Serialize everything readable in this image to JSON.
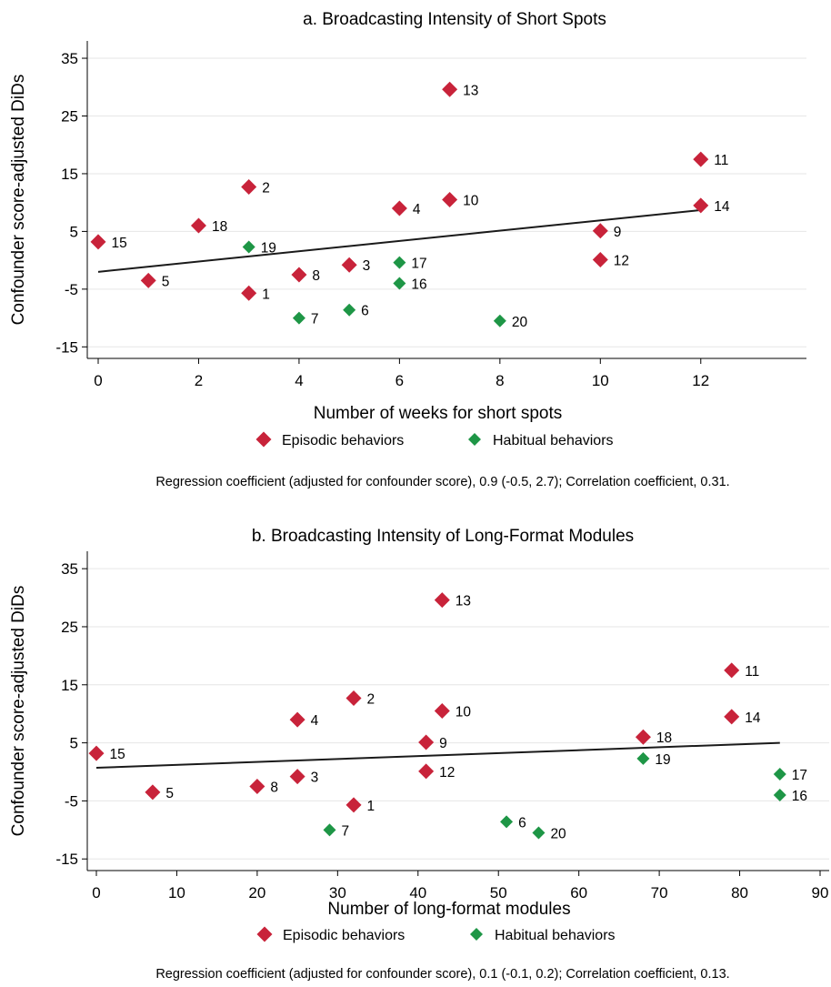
{
  "chart_data": [
    {
      "type": "scatter",
      "title": "a. Broadcasting Intensity of Short Spots",
      "xlabel": "Number of weeks for short spots",
      "ylabel": "Confounder score-adjusted DiDs",
      "xlim": [
        0,
        13
      ],
      "ylim": [
        -17,
        38
      ],
      "xticks": [
        0,
        2,
        4,
        6,
        8,
        10,
        12
      ],
      "yticks": [
        -15,
        -5,
        5,
        15,
        25,
        35
      ],
      "grid": "horizontal",
      "legend": [
        "Episodic behaviors",
        "Habitual behaviors"
      ],
      "legend_typo": "Habitual behaviοrs",
      "note": "Regression coefficient (adjusted for confounder score), 0.9 (-0.5, 2.7); Correlation coefficient, 0.31.",
      "fit_line": {
        "x": [
          0,
          12
        ],
        "y": [
          -2.0,
          8.7
        ]
      },
      "series": [
        {
          "name": "Episodic behaviors",
          "color": "#c8233a",
          "points": [
            {
              "x": 3,
              "y": -5.7,
              "label": "1"
            },
            {
              "x": 3,
              "y": 12.7,
              "label": "2"
            },
            {
              "x": 5,
              "y": -0.8,
              "label": "3"
            },
            {
              "x": 6,
              "y": 9.0,
              "label": "4"
            },
            {
              "x": 1,
              "y": -3.5,
              "label": "5"
            },
            {
              "x": 4,
              "y": -2.5,
              "label": "8"
            },
            {
              "x": 10,
              "y": 5.1,
              "label": "9"
            },
            {
              "x": 7,
              "y": 10.5,
              "label": "10"
            },
            {
              "x": 12,
              "y": 17.5,
              "label": "11"
            },
            {
              "x": 10,
              "y": 0.1,
              "label": "12"
            },
            {
              "x": 7,
              "y": 29.6,
              "label": "13"
            },
            {
              "x": 12,
              "y": 9.5,
              "label": "14"
            },
            {
              "x": 0,
              "y": 3.2,
              "label": "15"
            },
            {
              "x": 2,
              "y": 6.0,
              "label": "18"
            }
          ]
        },
        {
          "name": "Habitual behaviors",
          "color": "#1e9646",
          "points": [
            {
              "x": 5,
              "y": -8.6,
              "label": "6"
            },
            {
              "x": 4,
              "y": -10.0,
              "label": "7"
            },
            {
              "x": 6,
              "y": -4.0,
              "label": "16"
            },
            {
              "x": 6,
              "y": -0.4,
              "label": "17"
            },
            {
              "x": 3,
              "y": 2.3,
              "label": "19"
            },
            {
              "x": 8,
              "y": -10.5,
              "label": "20"
            }
          ]
        }
      ]
    },
    {
      "type": "scatter",
      "title": "b. Broadcasting Intensity of Long-Format Modules",
      "xlabel": "Number of long-format modules",
      "ylabel": "Confounder score-adjusted DiDs",
      "xlim": [
        0,
        90
      ],
      "ylim": [
        -17,
        38
      ],
      "xticks": [
        0,
        10,
        20,
        30,
        40,
        50,
        60,
        70,
        80,
        90
      ],
      "yticks": [
        -15,
        -5,
        5,
        15,
        25,
        35
      ],
      "grid": "horizontal",
      "legend": [
        "Episodic behaviors",
        "Habitual behaviors"
      ],
      "note": "Regression coefficient (adjusted for confounder score), 0.1 (-0.1, 0.2); Correlation coefficient, 0.13.",
      "fit_line": {
        "x": [
          0,
          85
        ],
        "y": [
          0.7,
          5.0
        ]
      },
      "series": [
        {
          "name": "Episodic behaviors",
          "color": "#c8233a",
          "points": [
            {
              "x": 32,
              "y": -5.7,
              "label": "1"
            },
            {
              "x": 32,
              "y": 12.7,
              "label": "2"
            },
            {
              "x": 25,
              "y": -0.8,
              "label": "3"
            },
            {
              "x": 25,
              "y": 9.0,
              "label": "4"
            },
            {
              "x": 7,
              "y": -3.5,
              "label": "5"
            },
            {
              "x": 20,
              "y": -2.5,
              "label": "8"
            },
            {
              "x": 41,
              "y": 5.1,
              "label": "9"
            },
            {
              "x": 43,
              "y": 10.5,
              "label": "10"
            },
            {
              "x": 79,
              "y": 17.5,
              "label": "11"
            },
            {
              "x": 41,
              "y": 0.1,
              "label": "12"
            },
            {
              "x": 43,
              "y": 29.6,
              "label": "13"
            },
            {
              "x": 79,
              "y": 9.5,
              "label": "14"
            },
            {
              "x": 0,
              "y": 3.2,
              "label": "15"
            },
            {
              "x": 68,
              "y": 6.0,
              "label": "18"
            }
          ]
        },
        {
          "name": "Habitual behaviors",
          "color": "#1e9646",
          "points": [
            {
              "x": 51,
              "y": -8.6,
              "label": "6"
            },
            {
              "x": 29,
              "y": -10.0,
              "label": "7"
            },
            {
              "x": 85,
              "y": -4.0,
              "label": "16"
            },
            {
              "x": 85,
              "y": -0.4,
              "label": "17"
            },
            {
              "x": 68,
              "y": 2.3,
              "label": "19"
            },
            {
              "x": 55,
              "y": -10.5,
              "label": "20"
            }
          ]
        }
      ]
    }
  ]
}
